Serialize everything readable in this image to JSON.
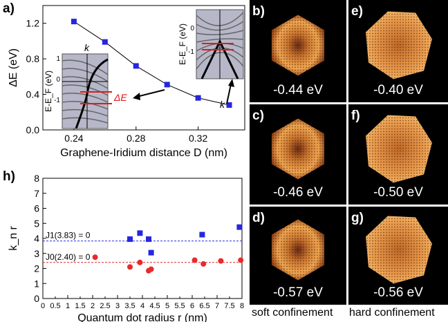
{
  "panel_a": {
    "letter": "a)",
    "ylabel": "ΔE (eV)",
    "xlabel": "Graphene-Iridium distance D (nm)",
    "yticks": [
      "0.0",
      "0.4",
      "0.8",
      "1.2"
    ],
    "xticks": [
      "0.24",
      "0.28",
      "0.32"
    ],
    "inset_left": {
      "k_label": "k",
      "yaxis": "E-E_F (eV)",
      "yticks": [
        "1",
        "0",
        "-1"
      ],
      "delta": "ΔE"
    },
    "inset_right": {
      "yaxis": "E-E_F (eV)",
      "yticks": [
        "0",
        "-1"
      ],
      "k_label": "k"
    }
  },
  "panel_h": {
    "letter": "h)",
    "ylabel": "k_n r",
    "xlabel": "Quantum dot radius r (nm)",
    "line_J1": "J1(3.83) = 0",
    "line_J0": "J0(2.40) = 0"
  },
  "stm_panels": [
    {
      "label": "b)",
      "energy": "-0.44 eV"
    },
    {
      "label": "e)",
      "energy": "-0.40 eV"
    },
    {
      "label": "c)",
      "energy": "-0.46 eV"
    },
    {
      "label": "f)",
      "energy": "-0.50 eV"
    },
    {
      "label": "d)",
      "energy": "-0.57 eV"
    },
    {
      "label": "g)",
      "energy": "-0.56 eV"
    }
  ],
  "footer": {
    "left": "soft confinement",
    "right": "hard confinement"
  },
  "chart_data": [
    {
      "type": "scatter",
      "panel": "a",
      "x": [
        0.24,
        0.26,
        0.28,
        0.3,
        0.32,
        0.34
      ],
      "y": [
        1.22,
        0.99,
        0.72,
        0.51,
        0.36,
        0.28
      ],
      "xlim": [
        0.22,
        0.35
      ],
      "ylim": [
        0.0,
        1.4
      ],
      "xlabel": "Graphene-Iridium distance D (nm)",
      "ylabel": "ΔE (eV)",
      "color": "#2626e0",
      "connected": true
    },
    {
      "type": "scatter",
      "panel": "h",
      "xlim": [
        0,
        8
      ],
      "ylim": [
        0,
        8
      ],
      "xticks": [
        0,
        0.5,
        1,
        1.5,
        2,
        2.5,
        3,
        3.5,
        4,
        4.5,
        5,
        5.5,
        6,
        6.5,
        7,
        7.5,
        8
      ],
      "yticks": [
        0,
        1,
        2,
        3,
        4,
        5,
        6,
        7,
        8
      ],
      "xlabel": "Quantum dot radius r (nm)",
      "ylabel": "k_n r",
      "hlines": [
        {
          "y": 3.83,
          "label": "J1(3.83) = 0",
          "color": "#2626e0"
        },
        {
          "y": 2.4,
          "label": "J0(2.40) = 0",
          "color": "#e02626"
        }
      ],
      "series": [
        {
          "marker": "square",
          "color": "#2626e0",
          "x": [
            3.5,
            3.9,
            4.25,
            4.35,
            6.4,
            7.9
          ],
          "y": [
            3.95,
            4.35,
            3.95,
            3.05,
            4.25,
            4.75
          ]
        },
        {
          "marker": "circle",
          "color": "#e82a2a",
          "x": [
            2.1,
            3.5,
            3.9,
            4.25,
            4.35,
            6.1,
            6.45,
            7.15,
            7.95
          ],
          "y": [
            2.75,
            2.1,
            2.4,
            1.85,
            1.95,
            2.55,
            2.3,
            2.5,
            2.55
          ]
        }
      ]
    }
  ]
}
